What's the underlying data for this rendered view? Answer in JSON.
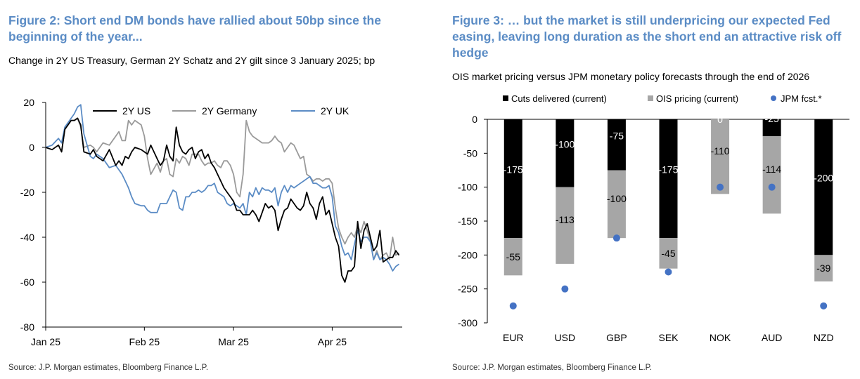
{
  "figure2": {
    "title": "Figure 2: Short end DM bonds have rallied about 50bp since the beginning of the year...",
    "subtitle": "Change in 2Y US Treasury, German 2Y Schatz and 2Y gilt since 3 January 2025; bp",
    "source": "Source: J.P. Morgan estimates, Bloomberg Finance L.P."
  },
  "figure3": {
    "title": "Figure 3: … but the market is still underpricing our expected Fed easing, leaving long duration as the short end an attractive risk off hedge",
    "subtitle": "OIS market pricing versus JPM monetary policy forecasts through the end of 2026",
    "source": "Source: J.P. Morgan estimates, Bloomberg Finance L.P."
  },
  "chart_data": [
    {
      "type": "line",
      "title": "Figure 2: Short end DM bonds have rallied about 50bp since the beginning of the year...",
      "ylim": [
        -80,
        20
      ],
      "yticks": [
        20,
        0,
        -20,
        -40,
        -60,
        -80
      ],
      "x_range": [
        0,
        112
      ],
      "x_ticks": [
        {
          "label": "Jan 25",
          "x": 0
        },
        {
          "label": "Feb 25",
          "x": 31
        },
        {
          "label": "Mar 25",
          "x": 59
        },
        {
          "label": "Apr 25",
          "x": 90
        }
      ],
      "legend_position": "top",
      "grid": false,
      "series": [
        {
          "name": "2Y US",
          "color": "#000000",
          "x": [
            0,
            2,
            4,
            5,
            6,
            8,
            9,
            10,
            11,
            12,
            14,
            15,
            16,
            18,
            20,
            22,
            23,
            24,
            25,
            26,
            27,
            28,
            30,
            31,
            32,
            33,
            35,
            36,
            37,
            38,
            39,
            40,
            41,
            42,
            43,
            44,
            45,
            46,
            47,
            48,
            49,
            50,
            51,
            52,
            53,
            54,
            55,
            56,
            57,
            58,
            59,
            60,
            61,
            62,
            63,
            64,
            65,
            66,
            67,
            68,
            69,
            70,
            71,
            72,
            73,
            74,
            75,
            76,
            77,
            78,
            79,
            80,
            81,
            82,
            83,
            84,
            85,
            86,
            87,
            88,
            89,
            90,
            91,
            92,
            93,
            94,
            95,
            96,
            97,
            98,
            99,
            100,
            101,
            102,
            103,
            104,
            105,
            106,
            107,
            108,
            109,
            110,
            111
          ],
          "values": [
            0,
            -1,
            1,
            -2,
            8,
            12,
            12,
            13,
            10,
            -2,
            -3,
            -1,
            -4,
            -6,
            -1,
            -8,
            -6,
            -8,
            -4,
            -5,
            -2,
            0,
            -1,
            -2,
            -3,
            1,
            -5,
            -8,
            -6,
            1,
            -4,
            -6,
            9,
            1,
            -2,
            -3,
            -1,
            0,
            -5,
            -2,
            -1,
            -5,
            -3,
            -7,
            -9,
            -12,
            -15,
            -18,
            -20,
            -22,
            -24,
            -28,
            -28,
            -30,
            -30,
            -30,
            -28,
            -30,
            -33,
            -29,
            -25,
            -27,
            -26,
            -28,
            -37,
            -32,
            -28,
            -27,
            -23,
            -25,
            -27,
            -28,
            -26,
            -20,
            -25,
            -27,
            -32,
            -25,
            -22,
            -30,
            -28,
            -34,
            -40,
            -44,
            -57,
            -60,
            -55,
            -55,
            -53,
            -33,
            -45,
            -37,
            -34,
            -40,
            -46,
            -44,
            -37,
            -51,
            -50,
            -49,
            -49,
            -46,
            -48
          ]
        },
        {
          "name": "2Y Germany",
          "color": "#9a9a9a",
          "x": [
            0,
            2,
            4,
            5,
            6,
            8,
            9,
            10,
            11,
            12,
            14,
            15,
            16,
            18,
            20,
            22,
            23,
            24,
            25,
            26,
            27,
            28,
            30,
            31,
            32,
            33,
            35,
            36,
            37,
            38,
            39,
            40,
            41,
            42,
            43,
            44,
            45,
            46,
            47,
            48,
            49,
            50,
            51,
            52,
            53,
            54,
            55,
            56,
            57,
            58,
            59,
            60,
            61,
            62,
            63,
            64,
            65,
            66,
            67,
            68,
            69,
            70,
            71,
            72,
            73,
            74,
            75,
            76,
            77,
            78,
            79,
            80,
            81,
            82,
            83,
            84,
            85,
            86,
            87,
            88,
            89,
            90,
            91,
            92,
            93,
            94,
            95,
            96,
            97,
            98,
            99,
            100,
            101,
            102,
            103,
            104,
            105,
            106,
            107,
            108,
            109,
            110,
            111
          ],
          "values": [
            0,
            -1,
            1,
            -2,
            8,
            12,
            12,
            13,
            9,
            0,
            1,
            0,
            -2,
            2,
            1,
            5,
            7,
            3,
            3,
            12,
            10,
            12,
            10,
            5,
            -5,
            -12,
            -7,
            -11,
            -6,
            -5,
            -12,
            -13,
            -5,
            -7,
            -4,
            -5,
            -8,
            -3,
            -3,
            -3,
            -6,
            -8,
            -7,
            -7,
            -6,
            -8,
            -9,
            -6,
            -6,
            -8,
            -12,
            -20,
            -22,
            -12,
            12,
            7,
            5,
            4,
            3,
            2,
            2,
            2,
            3,
            5,
            3,
            2,
            -2,
            0,
            2,
            1,
            -2,
            -5,
            -4,
            -12,
            -13,
            -15,
            -14,
            -14,
            -15,
            -14,
            -14,
            -16,
            -27,
            -36,
            -40,
            -43,
            -40,
            -38,
            -40,
            -35,
            -38,
            -33,
            -37,
            -42,
            -50,
            -46,
            -50,
            -48,
            -47,
            -50,
            -40,
            -48,
            -47
          ]
        },
        {
          "name": "2Y UK",
          "color": "#5b8cc5",
          "x": [
            0,
            2,
            4,
            5,
            6,
            8,
            9,
            10,
            11,
            12,
            14,
            15,
            16,
            18,
            20,
            22,
            23,
            24,
            25,
            26,
            27,
            28,
            30,
            31,
            32,
            33,
            35,
            36,
            37,
            38,
            39,
            40,
            41,
            42,
            43,
            44,
            45,
            46,
            47,
            48,
            49,
            50,
            51,
            52,
            53,
            54,
            55,
            56,
            57,
            58,
            59,
            60,
            61,
            62,
            63,
            64,
            65,
            66,
            67,
            68,
            69,
            70,
            71,
            72,
            73,
            74,
            75,
            76,
            77,
            78,
            79,
            80,
            81,
            82,
            83,
            84,
            85,
            86,
            87,
            88,
            89,
            90,
            91,
            92,
            93,
            94,
            95,
            96,
            97,
            98,
            99,
            100,
            101,
            102,
            103,
            104,
            105,
            106,
            107,
            108,
            109,
            110,
            111
          ],
          "values": [
            0,
            1,
            4,
            2,
            9,
            13,
            15,
            18,
            19,
            6,
            -4,
            -5,
            -3,
            -5,
            -9,
            -8,
            -10,
            -12,
            -15,
            -18,
            -22,
            -25,
            -26,
            -26,
            -28,
            -29,
            -29,
            -25,
            -25,
            -25,
            -22,
            -19,
            -20,
            -27,
            -28,
            -22,
            -22,
            -20,
            -20,
            -19,
            -20,
            -19,
            -17,
            -17,
            -16,
            -20,
            -21,
            -22,
            -25,
            -26,
            -25,
            -26,
            -27,
            -25,
            -30,
            -20,
            -22,
            -18,
            -21,
            -18,
            -19,
            -19,
            -20,
            -18,
            -26,
            -20,
            -17,
            -20,
            -17,
            -18,
            -17,
            -16,
            -15,
            -14,
            -13,
            -16,
            -16,
            -17,
            -18,
            -18,
            -17,
            -22,
            -35,
            -38,
            -44,
            -48,
            -47,
            -50,
            -43,
            -37,
            -42,
            -40,
            -40,
            -42,
            -50,
            -47,
            -50,
            -49,
            -50,
            -52,
            -55,
            -53,
            -52
          ]
        }
      ]
    },
    {
      "type": "bar",
      "title": "Figure 3: … but the market is still underpricing our expected Fed easing, leaving long duration as the short end an attractive risk off hedge",
      "categories": [
        "EUR",
        "USD",
        "GBP",
        "SEK",
        "NOK",
        "AUD",
        "NZD"
      ],
      "ylim": [
        -300,
        0
      ],
      "yticks": [
        0,
        -50,
        -100,
        -150,
        -200,
        -250,
        -300
      ],
      "stacked": true,
      "legend_position": "top",
      "grid": false,
      "series": [
        {
          "name": "Cuts delivered (current)",
          "color": "#000000",
          "values": [
            -175,
            -100,
            -75,
            -175,
            0,
            -25,
            -200
          ],
          "labels": [
            "-175",
            "-100",
            "-75",
            "-175",
            "0",
            "-25",
            "-200"
          ]
        },
        {
          "name": "OIS pricing (current)",
          "color": "#a6a6a6",
          "values": [
            -55,
            -113,
            -100,
            -45,
            -110,
            -114,
            -39
          ],
          "labels": [
            "-55",
            "-113",
            "-100",
            "-45",
            "-110",
            "-114",
            "-39"
          ]
        },
        {
          "name": "JPM fcst.*",
          "color": "#4472c4",
          "type": "scatter",
          "values": [
            -275,
            -250,
            -175,
            -225,
            -100,
            -100,
            -275
          ]
        }
      ]
    }
  ]
}
